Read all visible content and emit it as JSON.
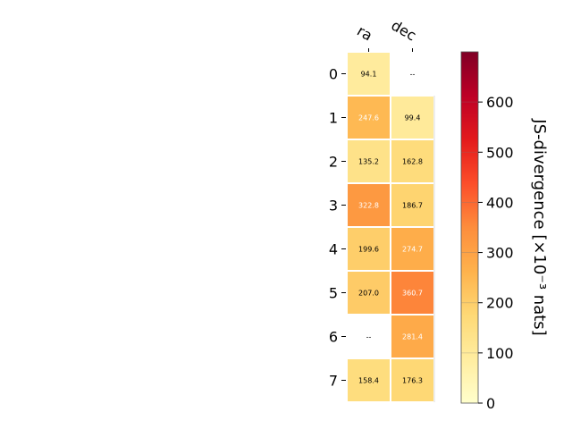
{
  "chart_data": {
    "type": "heatmap",
    "title": "",
    "columns": [
      "ra",
      "dec"
    ],
    "rows": [
      "0",
      "1",
      "2",
      "3",
      "4",
      "5",
      "6",
      "7"
    ],
    "values": [
      [
        94.1,
        null
      ],
      [
        247.6,
        99.4
      ],
      [
        135.2,
        162.8
      ],
      [
        322.8,
        186.7
      ],
      [
        199.6,
        274.7
      ],
      [
        207.0,
        360.7
      ],
      [
        null,
        281.4
      ],
      [
        158.4,
        176.3
      ]
    ],
    "cell_labels": [
      [
        "94.1",
        "--"
      ],
      [
        "247.6",
        "99.4"
      ],
      [
        "135.2",
        "162.8"
      ],
      [
        "322.8",
        "186.7"
      ],
      [
        "199.6",
        "274.7"
      ],
      [
        "207.0",
        "360.7"
      ],
      [
        "--",
        "281.4"
      ],
      [
        "158.4",
        "176.3"
      ]
    ],
    "colorbar": {
      "label": "JS-divergence [×10⁻³ nats]",
      "min": 0,
      "max": 700,
      "ticks": [
        0,
        100,
        200,
        300,
        400,
        500,
        600
      ],
      "colormap": "YlOrRd"
    },
    "grid": false
  }
}
